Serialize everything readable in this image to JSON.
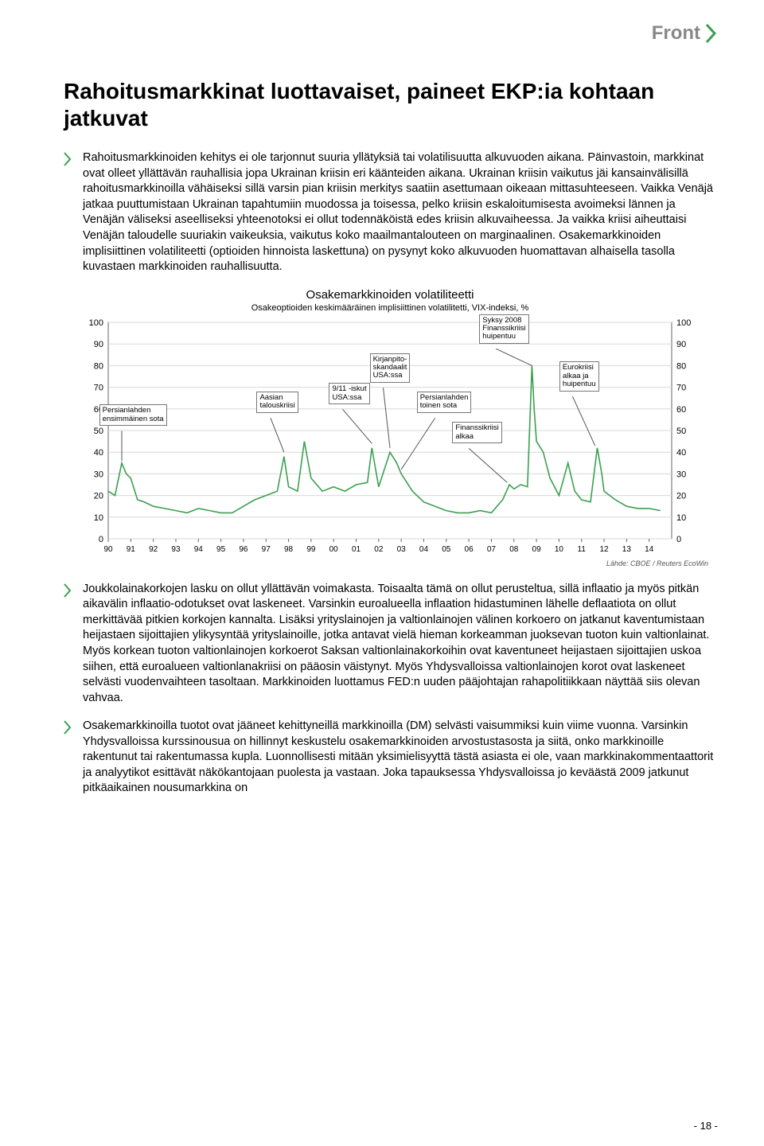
{
  "header": {
    "brand": "Front",
    "brand_color": "#888888",
    "accent_color": "#3aa050"
  },
  "title": "Rahoitusmarkkinat luottavaiset, paineet EKP:ia kohtaan jatkuvat",
  "bullet_marker_color": "#3aa050",
  "paragraphs": [
    "Rahoitusmarkkinoiden kehitys ei ole tarjonnut suuria yllätyksiä tai volatilisuutta alkuvuoden aikana. Päinvastoin, markkinat ovat olleet yllättävän rauhallisia jopa Ukrainan kriisin eri käänteiden aikana. Ukrainan kriisin vaikutus jäi kansainvälisillä rahoitusmarkkinoilla vähäiseksi sillä varsin pian kriisin merkitys saatiin asettumaan oikeaan mittasuhteeseen. Vaikka Venäjä jatkaa puuttumistaan Ukrainan tapahtumiin muodossa ja toisessa, pelko kriisin eskaloitumisesta avoimeksi lännen ja Venäjän väliseksi aseelliseksi yhteenotoksi ei ollut todennäköistä edes kriisin alkuvaiheessa. Ja vaikka kriisi aiheuttaisi Venäjän taloudelle suuriakin vaikeuksia, vaikutus koko maailmantalouteen on marginaalinen. Osakemarkkinoiden implisiittinen volatiliteetti (optioiden hinnoista laskettuna) on pysynyt koko alkuvuoden huomattavan alhaisella tasolla kuvastaen markkinoiden rauhallisuutta.",
    "Joukkolainakorkojen lasku on ollut yllättävän voimakasta. Toisaalta tämä on ollut perusteltua, sillä inflaatio ja myös pitkän aikavälin inflaatio-odotukset ovat laskeneet. Varsinkin euroalueella inflaation hidastuminen lähelle deflaatiota on ollut merkittävää pitkien korkojen kannalta. Lisäksi yrityslainojen ja valtionlainojen välinen korkoero on jatkanut kaventumistaan heijastaen sijoittajien ylikysyntää yrityslainoille, jotka antavat vielä hieman korkeamman juoksevan tuoton kuin valtionlainat. Myös korkean tuoton valtionlainojen korkoerot Saksan valtionlainakorkoihin ovat kaventuneet heijastaen sijoittajien uskoa siihen, että euroalueen valtionlanakriisi on pääosin väistynyt. Myös Yhdysvalloissa valtionlainojen korot ovat laskeneet selvästi vuodenvaihteen tasoltaan. Markkinoiden luottamus FED:n uuden pääjohtajan rahapolitiikkaan näyttää siis olevan vahvaa.",
    "Osakemarkkinoilla tuotot ovat jääneet kehittyneillä markkinoilla (DM) selvästi vaisummiksi kuin viime vuonna. Varsinkin Yhdysvalloissa kurssinousua on hillinnyt keskustelu osakemarkkinoiden arvostustasosta ja siitä, onko markkinoille rakentunut tai rakentumassa kupla. Luonnollisesti mitään yksimielisyyttä tästä asiasta ei ole, vaan markkinakommentaattorit ja analyytikot esittävät näkökantojaan puolesta ja vastaan. Joka tapauksessa Yhdysvalloissa jo keväästä 2009 jatkunut pitkäaikainen nousumarkkina on"
  ],
  "chart": {
    "type": "line",
    "title": "Osakemarkkinoiden volatiliteetti",
    "subtitle": "Osakeoptioiden keskimääräinen implisiittinen volatilitetti, VIX-indeksi, %",
    "source": "Lähde: CBOE / Reuters EcoWin",
    "line_color": "#3aa050",
    "bg_color": "#ffffff",
    "grid_color": "#d8d8d8",
    "axis_color": "#666666",
    "text_color": "#000000",
    "label_fontsize": 11,
    "ylim": [
      0,
      100
    ],
    "yticks": [
      0,
      10,
      20,
      30,
      40,
      50,
      60,
      70,
      80,
      90,
      100
    ],
    "xlim": [
      1990,
      2015
    ],
    "xticks": [
      "90",
      "91",
      "92",
      "93",
      "94",
      "95",
      "96",
      "97",
      "98",
      "99",
      "00",
      "01",
      "02",
      "03",
      "04",
      "05",
      "06",
      "07",
      "08",
      "09",
      "10",
      "11",
      "12",
      "13",
      "14"
    ],
    "series": [
      {
        "x": 1990.0,
        "y": 22
      },
      {
        "x": 1990.3,
        "y": 20
      },
      {
        "x": 1990.6,
        "y": 35
      },
      {
        "x": 1990.8,
        "y": 30
      },
      {
        "x": 1991.0,
        "y": 28
      },
      {
        "x": 1991.3,
        "y": 18
      },
      {
        "x": 1991.6,
        "y": 17
      },
      {
        "x": 1992.0,
        "y": 15
      },
      {
        "x": 1992.5,
        "y": 14
      },
      {
        "x": 1993.0,
        "y": 13
      },
      {
        "x": 1993.5,
        "y": 12
      },
      {
        "x": 1994.0,
        "y": 14
      },
      {
        "x": 1994.5,
        "y": 13
      },
      {
        "x": 1995.0,
        "y": 12
      },
      {
        "x": 1995.5,
        "y": 12
      },
      {
        "x": 1996.0,
        "y": 15
      },
      {
        "x": 1996.5,
        "y": 18
      },
      {
        "x": 1997.0,
        "y": 20
      },
      {
        "x": 1997.5,
        "y": 22
      },
      {
        "x": 1997.8,
        "y": 38
      },
      {
        "x": 1998.0,
        "y": 24
      },
      {
        "x": 1998.4,
        "y": 22
      },
      {
        "x": 1998.7,
        "y": 45
      },
      {
        "x": 1999.0,
        "y": 28
      },
      {
        "x": 1999.5,
        "y": 22
      },
      {
        "x": 2000.0,
        "y": 24
      },
      {
        "x": 2000.5,
        "y": 22
      },
      {
        "x": 2001.0,
        "y": 25
      },
      {
        "x": 2001.5,
        "y": 26
      },
      {
        "x": 2001.7,
        "y": 42
      },
      {
        "x": 2002.0,
        "y": 24
      },
      {
        "x": 2002.5,
        "y": 40
      },
      {
        "x": 2002.8,
        "y": 35
      },
      {
        "x": 2003.0,
        "y": 30
      },
      {
        "x": 2003.5,
        "y": 22
      },
      {
        "x": 2004.0,
        "y": 17
      },
      {
        "x": 2004.5,
        "y": 15
      },
      {
        "x": 2005.0,
        "y": 13
      },
      {
        "x": 2005.5,
        "y": 12
      },
      {
        "x": 2006.0,
        "y": 12
      },
      {
        "x": 2006.5,
        "y": 13
      },
      {
        "x": 2007.0,
        "y": 12
      },
      {
        "x": 2007.5,
        "y": 18
      },
      {
        "x": 2007.8,
        "y": 25
      },
      {
        "x": 2008.0,
        "y": 23
      },
      {
        "x": 2008.3,
        "y": 25
      },
      {
        "x": 2008.6,
        "y": 24
      },
      {
        "x": 2008.8,
        "y": 80
      },
      {
        "x": 2008.9,
        "y": 60
      },
      {
        "x": 2009.0,
        "y": 45
      },
      {
        "x": 2009.3,
        "y": 40
      },
      {
        "x": 2009.6,
        "y": 28
      },
      {
        "x": 2010.0,
        "y": 20
      },
      {
        "x": 2010.4,
        "y": 35
      },
      {
        "x": 2010.7,
        "y": 22
      },
      {
        "x": 2011.0,
        "y": 18
      },
      {
        "x": 2011.4,
        "y": 17
      },
      {
        "x": 2011.7,
        "y": 42
      },
      {
        "x": 2011.9,
        "y": 30
      },
      {
        "x": 2012.0,
        "y": 22
      },
      {
        "x": 2012.5,
        "y": 18
      },
      {
        "x": 2013.0,
        "y": 15
      },
      {
        "x": 2013.5,
        "y": 14
      },
      {
        "x": 2014.0,
        "y": 14
      },
      {
        "x": 2014.5,
        "y": 13
      }
    ],
    "annotations": [
      {
        "label": "Persianlahden\nensimmäinen sota",
        "bx": 1990.6,
        "by": 52,
        "tx": 1990.6,
        "ty": 36
      },
      {
        "label": "Aasian\ntalouskriisi",
        "bx": 1997.2,
        "by": 58,
        "tx": 1997.8,
        "ty": 40
      },
      {
        "label": "9/11 -iskut\nUSA:ssa",
        "bx": 2000.4,
        "by": 62,
        "tx": 2001.7,
        "ty": 44
      },
      {
        "label": "Kirjanpito-\nskandaalit\nUSA:ssa",
        "bx": 2002.2,
        "by": 72,
        "tx": 2002.5,
        "ty": 42
      },
      {
        "label": "Persianlahden\ntoinen sota",
        "bx": 2004.5,
        "by": 58,
        "tx": 2003.0,
        "ty": 32
      },
      {
        "label": "Finanssikriisi\nalkaa",
        "bx": 2006.0,
        "by": 44,
        "tx": 2007.7,
        "ty": 26
      },
      {
        "label": "Syksy 2008\nFinanssikriisi\nhuipentuu",
        "bx": 2007.2,
        "by": 90,
        "tx": 2008.8,
        "ty": 80
      },
      {
        "label": "Eurokriisi\nalkaa ja\nhuipentuu",
        "bx": 2010.6,
        "by": 68,
        "tx": 2011.6,
        "ty": 43
      }
    ]
  },
  "page_number": "- 18 -"
}
